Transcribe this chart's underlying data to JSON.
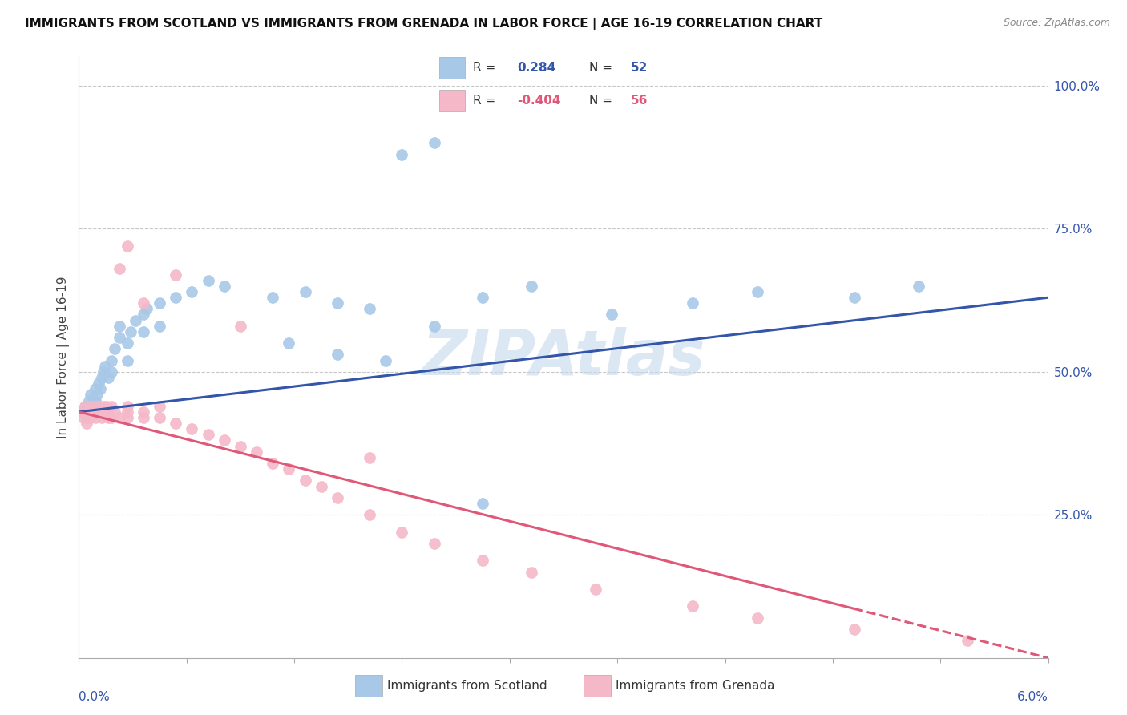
{
  "title": "IMMIGRANTS FROM SCOTLAND VS IMMIGRANTS FROM GRENADA IN LABOR FORCE | AGE 16-19 CORRELATION CHART",
  "source": "Source: ZipAtlas.com",
  "ylabel": "In Labor Force | Age 16-19",
  "right_yticks": [
    0.25,
    0.5,
    0.75,
    1.0
  ],
  "right_yticklabels": [
    "25.0%",
    "50.0%",
    "75.0%",
    "100.0%"
  ],
  "xmin": 0.0,
  "xmax": 0.06,
  "ymin": 0.0,
  "ymax": 1.05,
  "scotland_color": "#a8c8e8",
  "grenada_color": "#f4b8c8",
  "scotland_line_color": "#3355aa",
  "grenada_line_color": "#e05878",
  "watermark_color": "#c5d8ee",
  "scotland_x": [
    0.0003,
    0.0004,
    0.0005,
    0.0006,
    0.0007,
    0.0008,
    0.0009,
    0.001,
    0.001,
    0.0011,
    0.0012,
    0.0013,
    0.0014,
    0.0015,
    0.0016,
    0.0018,
    0.002,
    0.002,
    0.0022,
    0.0025,
    0.0025,
    0.003,
    0.003,
    0.0032,
    0.0035,
    0.004,
    0.004,
    0.0042,
    0.005,
    0.005,
    0.006,
    0.007,
    0.008,
    0.009,
    0.012,
    0.014,
    0.016,
    0.018,
    0.02,
    0.022,
    0.025,
    0.028,
    0.033,
    0.038,
    0.042,
    0.048,
    0.052,
    0.025,
    0.022,
    0.019,
    0.016,
    0.013
  ],
  "scotland_y": [
    0.43,
    0.44,
    0.42,
    0.45,
    0.46,
    0.43,
    0.44,
    0.47,
    0.45,
    0.46,
    0.48,
    0.47,
    0.49,
    0.5,
    0.51,
    0.49,
    0.52,
    0.5,
    0.54,
    0.56,
    0.58,
    0.55,
    0.52,
    0.57,
    0.59,
    0.6,
    0.57,
    0.61,
    0.62,
    0.58,
    0.63,
    0.64,
    0.66,
    0.65,
    0.63,
    0.64,
    0.62,
    0.61,
    0.88,
    0.9,
    0.63,
    0.65,
    0.6,
    0.62,
    0.64,
    0.63,
    0.65,
    0.27,
    0.58,
    0.52,
    0.53,
    0.55
  ],
  "grenada_x": [
    0.0002,
    0.0003,
    0.0004,
    0.0005,
    0.0006,
    0.0007,
    0.0008,
    0.0009,
    0.001,
    0.001,
    0.0011,
    0.0012,
    0.0013,
    0.0014,
    0.0015,
    0.0016,
    0.0017,
    0.0018,
    0.002,
    0.002,
    0.0022,
    0.0025,
    0.003,
    0.003,
    0.003,
    0.004,
    0.004,
    0.005,
    0.005,
    0.006,
    0.007,
    0.008,
    0.009,
    0.01,
    0.011,
    0.012,
    0.013,
    0.014,
    0.015,
    0.016,
    0.018,
    0.02,
    0.022,
    0.025,
    0.028,
    0.032,
    0.038,
    0.042,
    0.048,
    0.055,
    0.0025,
    0.003,
    0.004,
    0.006,
    0.01,
    0.018
  ],
  "grenada_y": [
    0.43,
    0.42,
    0.44,
    0.41,
    0.43,
    0.42,
    0.44,
    0.43,
    0.44,
    0.42,
    0.43,
    0.44,
    0.43,
    0.42,
    0.44,
    0.43,
    0.44,
    0.42,
    0.44,
    0.42,
    0.43,
    0.42,
    0.44,
    0.43,
    0.42,
    0.43,
    0.42,
    0.44,
    0.42,
    0.41,
    0.4,
    0.39,
    0.38,
    0.37,
    0.36,
    0.34,
    0.33,
    0.31,
    0.3,
    0.28,
    0.25,
    0.22,
    0.2,
    0.17,
    0.15,
    0.12,
    0.09,
    0.07,
    0.05,
    0.03,
    0.68,
    0.72,
    0.62,
    0.67,
    0.58,
    0.35
  ]
}
